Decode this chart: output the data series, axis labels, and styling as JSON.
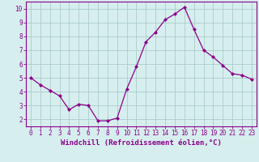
{
  "x": [
    0,
    1,
    2,
    3,
    4,
    5,
    6,
    7,
    8,
    9,
    10,
    11,
    12,
    13,
    14,
    15,
    16,
    17,
    18,
    19,
    20,
    21,
    22,
    23
  ],
  "y": [
    5.0,
    4.5,
    4.1,
    3.7,
    2.7,
    3.1,
    3.0,
    1.9,
    1.9,
    2.1,
    4.2,
    5.8,
    7.6,
    8.3,
    9.2,
    9.6,
    10.1,
    8.5,
    7.0,
    6.5,
    5.9,
    5.3,
    5.2,
    4.9
  ],
  "line_color": "#8b008b",
  "marker": "D",
  "marker_size": 2.0,
  "bg_color": "#d6eeee",
  "grid_color": "#aacccc",
  "axis_color": "#8b008b",
  "xlabel": "Windchill (Refroidissement éolien,°C)",
  "xlim": [
    -0.5,
    23.5
  ],
  "ylim": [
    1.5,
    10.5
  ],
  "yticks": [
    2,
    3,
    4,
    5,
    6,
    7,
    8,
    9,
    10
  ],
  "xticks": [
    0,
    1,
    2,
    3,
    4,
    5,
    6,
    7,
    8,
    9,
    10,
    11,
    12,
    13,
    14,
    15,
    16,
    17,
    18,
    19,
    20,
    21,
    22,
    23
  ],
  "xlabel_fontsize": 6.5,
  "tick_fontsize": 5.5,
  "tick_color": "#8b008b",
  "linewidth": 0.9
}
